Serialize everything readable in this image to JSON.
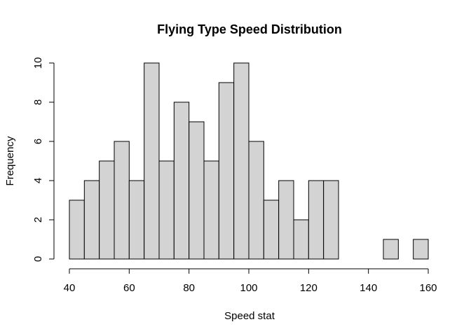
{
  "chart_data": {
    "type": "bar",
    "title": "Flying Type Speed Distribution",
    "xlabel": "Speed stat",
    "ylabel": "Frequency",
    "bin_width": 5,
    "bins": [
      {
        "start": 40,
        "end": 45,
        "count": 3
      },
      {
        "start": 45,
        "end": 50,
        "count": 4
      },
      {
        "start": 50,
        "end": 55,
        "count": 5
      },
      {
        "start": 55,
        "end": 60,
        "count": 6
      },
      {
        "start": 60,
        "end": 65,
        "count": 4
      },
      {
        "start": 65,
        "end": 70,
        "count": 10
      },
      {
        "start": 70,
        "end": 75,
        "count": 5
      },
      {
        "start": 75,
        "end": 80,
        "count": 8
      },
      {
        "start": 80,
        "end": 85,
        "count": 7
      },
      {
        "start": 85,
        "end": 90,
        "count": 5
      },
      {
        "start": 90,
        "end": 95,
        "count": 9
      },
      {
        "start": 95,
        "end": 100,
        "count": 10
      },
      {
        "start": 100,
        "end": 105,
        "count": 6
      },
      {
        "start": 105,
        "end": 110,
        "count": 3
      },
      {
        "start": 110,
        "end": 115,
        "count": 4
      },
      {
        "start": 115,
        "end": 120,
        "count": 2
      },
      {
        "start": 120,
        "end": 125,
        "count": 4
      },
      {
        "start": 125,
        "end": 130,
        "count": 4
      },
      {
        "start": 130,
        "end": 135,
        "count": 0
      },
      {
        "start": 135,
        "end": 140,
        "count": 0
      },
      {
        "start": 140,
        "end": 145,
        "count": 0
      },
      {
        "start": 145,
        "end": 150,
        "count": 1
      },
      {
        "start": 150,
        "end": 155,
        "count": 0
      },
      {
        "start": 155,
        "end": 160,
        "count": 1
      }
    ],
    "xlim": [
      40,
      160
    ],
    "ylim": [
      0,
      10
    ],
    "x_ticks": [
      40,
      60,
      80,
      100,
      120,
      140,
      160
    ],
    "y_ticks": [
      0,
      2,
      4,
      6,
      8,
      10
    ],
    "grid": false,
    "bar_color": "#d3d3d3",
    "edge_color": "#000000"
  }
}
